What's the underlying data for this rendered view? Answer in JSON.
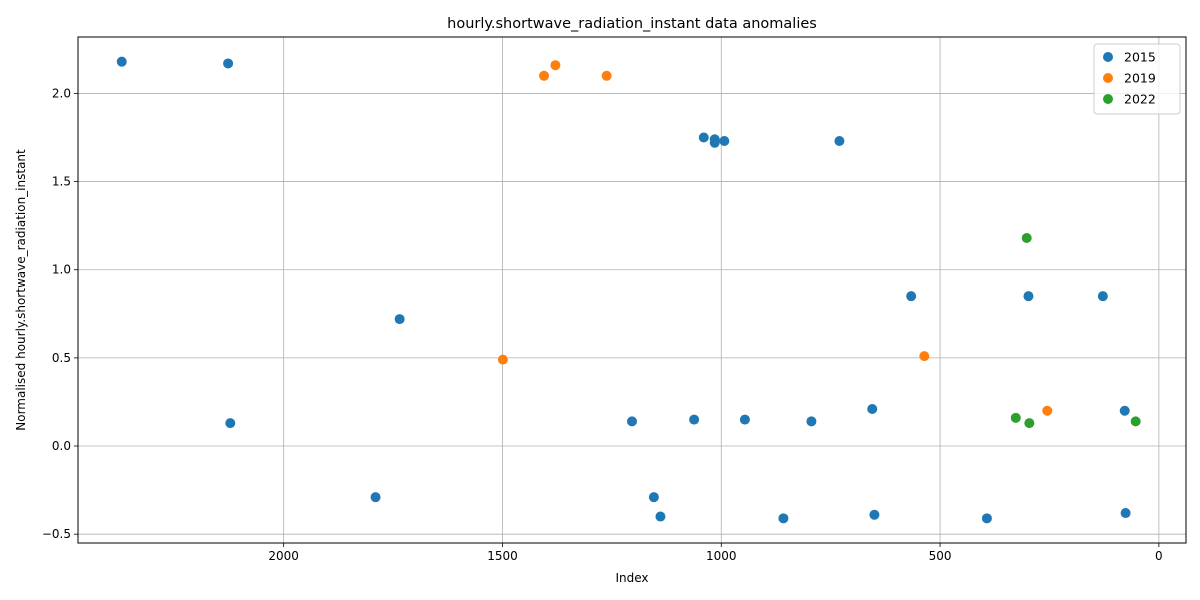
{
  "chart_data": {
    "type": "scatter",
    "title": "hourly.shortwave_radiation_instant data anomalies",
    "xlabel": "Index",
    "ylabel": "Normalised hourly.shortwave_radiation_instant",
    "xlim": [
      2470,
      -62
    ],
    "ylim": [
      -0.55,
      2.32
    ],
    "x_axis_inverted": true,
    "grid": true,
    "legend_position": "top-right",
    "x_ticks": [
      2000,
      1500,
      1000,
      500,
      0
    ],
    "x_tick_labels": [
      "2000",
      "1500",
      "1000",
      "500",
      "0"
    ],
    "y_ticks": [
      -0.5,
      0.0,
      0.5,
      1.0,
      1.5,
      2.0
    ],
    "y_tick_labels": [
      "−0.5",
      "0.0",
      "0.5",
      "1.0",
      "1.5",
      "2.0"
    ],
    "series": [
      {
        "name": "2015",
        "color": "#1f77b4",
        "points": [
          [
            2370,
            2.18
          ],
          [
            2127,
            2.17
          ],
          [
            2122,
            0.13
          ],
          [
            1735,
            0.72
          ],
          [
            1790,
            -0.29
          ],
          [
            1204,
            0.14
          ],
          [
            1154,
            -0.29
          ],
          [
            1139,
            -0.4
          ],
          [
            1062,
            0.15
          ],
          [
            1040,
            1.75
          ],
          [
            1015,
            1.72
          ],
          [
            1015,
            1.74
          ],
          [
            993,
            1.73
          ],
          [
            946,
            0.15
          ],
          [
            858,
            -0.41
          ],
          [
            794,
            0.14
          ],
          [
            730,
            1.73
          ],
          [
            655,
            0.21
          ],
          [
            650,
            -0.39
          ],
          [
            566,
            0.85
          ],
          [
            393,
            -0.41
          ],
          [
            298,
            0.85
          ],
          [
            128,
            0.85
          ],
          [
            78,
            0.2
          ],
          [
            76,
            -0.38
          ]
        ]
      },
      {
        "name": "2019",
        "color": "#ff7f0e",
        "points": [
          [
            1499,
            0.49
          ],
          [
            1405,
            2.1
          ],
          [
            1379,
            2.16
          ],
          [
            1262,
            2.1
          ],
          [
            536,
            0.51
          ],
          [
            255,
            0.2
          ]
        ]
      },
      {
        "name": "2022",
        "color": "#2ca02c",
        "points": [
          [
            302,
            1.18
          ],
          [
            327,
            0.16
          ],
          [
            296,
            0.13
          ],
          [
            53,
            0.14
          ]
        ]
      }
    ]
  }
}
